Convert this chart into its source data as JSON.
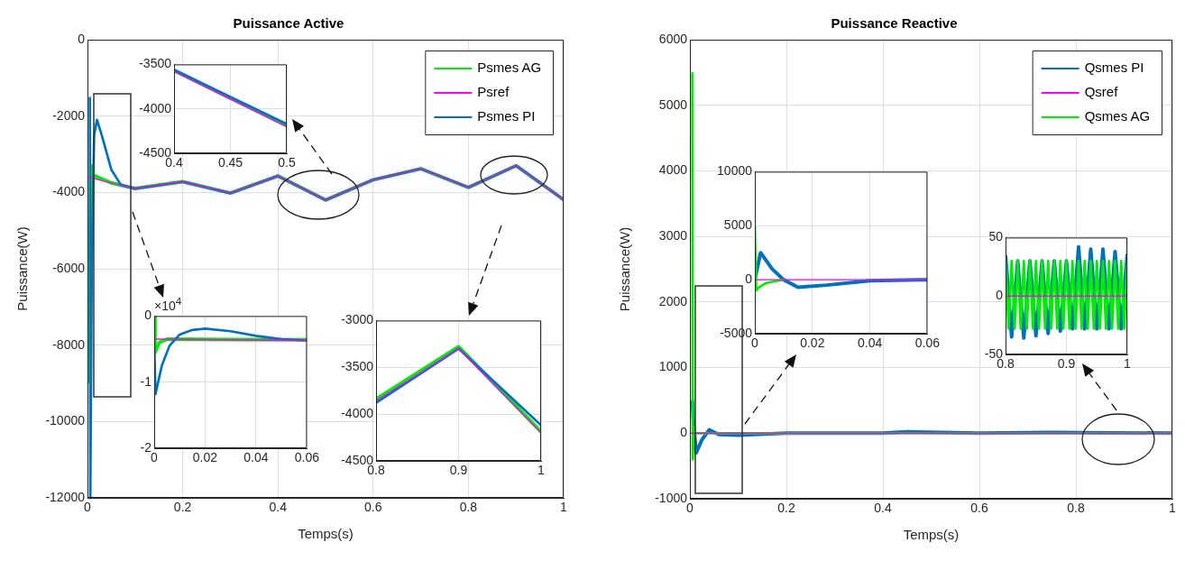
{
  "chart_data": [
    {
      "type": "line",
      "title": "Puissance Active",
      "xlabel": "Temps(s)",
      "ylabel": "Puissance(W)",
      "xlim": [
        0,
        1
      ],
      "xticks": [
        0,
        0.2,
        0.4,
        0.6,
        0.8,
        1
      ],
      "ylim": [
        -12000,
        0
      ],
      "yticks": [
        -12000,
        -10000,
        -8000,
        -6000,
        -4000,
        -2000,
        0
      ],
      "grid": true,
      "legend": "top right",
      "series": [
        {
          "name": "Psmes AG",
          "color": "#00ee00",
          "x": [
            0.005,
            0.006,
            0.008,
            0.012,
            0.05,
            0.1,
            0.2,
            0.3,
            0.4,
            0.5,
            0.6,
            0.7,
            0.8,
            0.9,
            1
          ],
          "values": [
            -9000,
            -5000,
            -3300,
            -3550,
            -3750,
            -3900,
            -3720,
            -4020,
            -3570,
            -4200,
            -3670,
            -3380,
            -3870,
            -3300,
            -4190
          ]
        },
        {
          "name": "Psref",
          "color": "#ff00ff",
          "x": [
            0,
            0.1,
            0.2,
            0.3,
            0.4,
            0.5,
            0.6,
            0.7,
            0.8,
            0.9,
            1
          ],
          "values": [
            -3600,
            -3900,
            -3720,
            -4020,
            -3570,
            -4200,
            -3670,
            -3380,
            -3870,
            -3300,
            -4190
          ]
        },
        {
          "name": "Psmes PI",
          "color": "#0072bd",
          "x": [
            0.005,
            0.006,
            0.009,
            0.014,
            0.02,
            0.03,
            0.05,
            0.07,
            0.1,
            0.2,
            0.3,
            0.4,
            0.5,
            0.6,
            0.7,
            0.8,
            0.9,
            1
          ],
          "values": [
            -1500,
            -12000,
            -6000,
            -2500,
            -2100,
            -2500,
            -3400,
            -3800,
            -3900,
            -3720,
            -4020,
            -3570,
            -4200,
            -3670,
            -3380,
            -3870,
            -3300,
            -4190
          ]
        }
      ]
    },
    {
      "type": "line",
      "xlim": [
        0.4,
        0.5
      ],
      "xticks": [
        0.4,
        0.45,
        0.5
      ],
      "ylim": [
        -4500,
        -3500
      ],
      "yticks": [
        -4500,
        -4000,
        -3500
      ],
      "grid": true,
      "series": [
        {
          "color": "#00ee00",
          "x": [
            0.4,
            0.5
          ],
          "values": [
            -3570,
            -4190
          ]
        },
        {
          "color": "#ff00ff",
          "x": [
            0.4,
            0.5
          ],
          "values": [
            -3580,
            -4200
          ]
        },
        {
          "color": "#0072bd",
          "x": [
            0.4,
            0.5
          ],
          "values": [
            -3560,
            -4170
          ]
        }
      ]
    },
    {
      "type": "line",
      "xlim": [
        0,
        0.06
      ],
      "xticks": [
        0,
        0.02,
        0.04,
        0.06
      ],
      "ylim": [
        -2,
        0
      ],
      "yticks": [
        -2,
        -1,
        0
      ],
      "grid": true,
      "annotations": [
        "×10$^{4}$"
      ],
      "series": [
        {
          "color": "#00ee00",
          "x": [
            0,
            0.0003,
            0.002,
            0.005,
            0.06
          ],
          "values": [
            0,
            -0.55,
            -0.4,
            -0.35,
            -0.36
          ]
        },
        {
          "color": "#ff00ff",
          "x": [
            0,
            0.06
          ],
          "values": [
            -0.35,
            -0.37
          ]
        },
        {
          "color": "#0072bd",
          "x": [
            0,
            0.0005,
            0.003,
            0.006,
            0.01,
            0.015,
            0.02,
            0.03,
            0.04,
            0.05,
            0.06
          ],
          "values": [
            -0.4,
            -1.18,
            -0.75,
            -0.45,
            -0.28,
            -0.21,
            -0.19,
            -0.23,
            -0.3,
            -0.35,
            -0.37
          ]
        }
      ]
    },
    {
      "type": "line",
      "xlim": [
        0.8,
        1
      ],
      "xticks": [
        0.8,
        0.9,
        1
      ],
      "ylim": [
        -4500,
        -3000
      ],
      "yticks": [
        -4500,
        -4000,
        -3500,
        -3000
      ],
      "grid": true,
      "series": [
        {
          "color": "#00ee00",
          "x": [
            0.8,
            0.9,
            1
          ],
          "values": [
            -3840,
            -3280,
            -4190
          ]
        },
        {
          "color": "#ff00ff",
          "x": [
            0.8,
            0.9,
            1
          ],
          "values": [
            -3860,
            -3300,
            -4200
          ]
        },
        {
          "color": "#0072bd",
          "x": [
            0.8,
            0.9,
            1
          ],
          "values": [
            -3880,
            -3300,
            -4120
          ]
        }
      ]
    },
    {
      "type": "line",
      "title": "Puissance Reactive",
      "xlabel": "Temps(s)",
      "ylabel": "Puissance(W)",
      "xlim": [
        0,
        1
      ],
      "xticks": [
        0,
        0.2,
        0.4,
        0.6,
        0.8,
        1
      ],
      "ylim": [
        -1000,
        6000
      ],
      "yticks": [
        -1000,
        0,
        1000,
        2000,
        3000,
        4000,
        5000,
        6000
      ],
      "grid": true,
      "legend": "top right",
      "series": [
        {
          "name": "Qsmes PI",
          "color": "#0072bd",
          "x": [
            0.005,
            0.007,
            0.013,
            0.025,
            0.04,
            0.06,
            0.1,
            0.2,
            0.4,
            0.45,
            0.6,
            0.75,
            1
          ],
          "values": [
            500,
            200,
            -300,
            -100,
            50,
            -20,
            -30,
            0,
            0,
            20,
            0,
            10,
            0
          ]
        },
        {
          "name": "Qsref",
          "color": "#ff00ff",
          "x": [
            0,
            1
          ],
          "values": [
            0,
            0
          ]
        },
        {
          "name": "Qsmes AG",
          "color": "#00ee00",
          "x": [
            0.005,
            0.006,
            0.008,
            0.01,
            0.015,
            1
          ],
          "values": [
            5500,
            -400,
            100,
            0,
            0,
            0
          ]
        }
      ]
    },
    {
      "type": "line",
      "xlim": [
        0,
        0.06
      ],
      "xticks": [
        0,
        0.02,
        0.04,
        0.06
      ],
      "ylim": [
        -5000,
        10000
      ],
      "yticks": [
        -5000,
        0,
        5000,
        10000
      ],
      "grid": true,
      "series": [
        {
          "color": "#0072bd",
          "x": [
            0,
            0.002,
            0.006,
            0.01,
            0.015,
            0.025,
            0.04,
            0.06
          ],
          "values": [
            0,
            2500,
            1000,
            0,
            -700,
            -500,
            -100,
            0
          ]
        },
        {
          "color": "#ff00ff",
          "x": [
            0,
            0.06
          ],
          "values": [
            0,
            0
          ]
        },
        {
          "color": "#00ee00",
          "x": [
            0,
            0.0005,
            0.001,
            0.004,
            0.01
          ],
          "values": [
            5000,
            -1000,
            -800,
            -300,
            0
          ]
        }
      ]
    },
    {
      "type": "line",
      "xlim": [
        0.8,
        1
      ],
      "xticks": [
        0.8,
        0.9,
        1
      ],
      "ylim": [
        -50,
        50
      ],
      "yticks": [
        -50,
        0,
        50
      ],
      "grid": true,
      "series": [
        {
          "color": "#0072bd",
          "x": [
            0.8,
            0.81,
            0.82,
            0.83,
            0.84,
            0.85,
            0.86,
            0.87,
            0.88,
            0.89,
            0.9,
            0.91,
            0.92,
            0.93,
            0.94,
            0.95,
            0.96,
            0.97,
            0.98,
            0.99,
            1
          ],
          "values": [
            35,
            -35,
            30,
            -36,
            30,
            -34,
            30,
            -32,
            30,
            -30,
            30,
            -28,
            42,
            -28,
            40,
            -28,
            40,
            -28,
            38,
            -28,
            36
          ]
        },
        {
          "color": "#ff00ff",
          "x": [
            0.8,
            1
          ],
          "values": [
            0,
            0
          ]
        },
        {
          "color": "#00ee00",
          "x": [
            0.8,
            0.805,
            0.81,
            0.815,
            0.82,
            0.825,
            0.83,
            0.835,
            0.84,
            0.845,
            0.85,
            0.855,
            0.86,
            0.865,
            0.87,
            0.875,
            0.88,
            0.885,
            0.89,
            0.895,
            0.9,
            0.905,
            0.91,
            0.915,
            0.92,
            0.925,
            0.93,
            0.935,
            0.94,
            0.945,
            0.95,
            0.955,
            0.96,
            0.965,
            0.97,
            0.975,
            0.98,
            0.985,
            0.99,
            0.995,
            1
          ],
          "values": [
            30,
            -28,
            30,
            -28,
            30,
            -28,
            30,
            -28,
            30,
            -28,
            30,
            -28,
            30,
            -28,
            30,
            -28,
            30,
            -28,
            30,
            -28,
            30,
            -28,
            30,
            -28,
            30,
            -28,
            30,
            -28,
            30,
            -28,
            30,
            -28,
            30,
            -28,
            30,
            -28,
            30,
            -28,
            30,
            -28,
            30
          ]
        }
      ]
    }
  ]
}
